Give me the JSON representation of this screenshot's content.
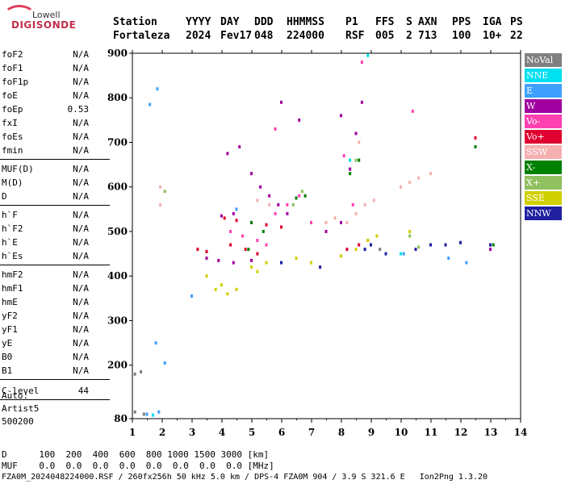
{
  "logo": {
    "brand": "Lowell",
    "name": "DIGISONDE"
  },
  "header": {
    "row1": [
      "Station",
      "YYYY",
      "DAY",
      "DDD",
      "HHMMSS",
      "P1",
      "FFS",
      "S",
      "AXN",
      "PPS",
      "IGA",
      "PS"
    ],
    "row2": [
      "Fortaleza",
      "2024",
      "Fev17",
      "048",
      "224000",
      "RSF",
      "005",
      "2",
      "713",
      "100",
      "10+",
      "22"
    ]
  },
  "params": {
    "group1": [
      {
        "name": "foF2",
        "value": "N/A"
      },
      {
        "name": "foF1",
        "value": "N/A"
      },
      {
        "name": "foF1p",
        "value": "N/A"
      },
      {
        "name": "foE",
        "value": "N/A"
      },
      {
        "name": "foEp",
        "value": "0.53"
      },
      {
        "name": "fxI",
        "value": "N/A"
      },
      {
        "name": "foEs",
        "value": "N/A"
      },
      {
        "name": "fmin",
        "value": "N/A"
      }
    ],
    "group2": [
      {
        "name": "MUF(D)",
        "value": "N/A"
      },
      {
        "name": "M(D)",
        "value": "N/A"
      },
      {
        "name": "D",
        "value": "N/A"
      }
    ],
    "group3": [
      {
        "name": "h`F",
        "value": "N/A"
      },
      {
        "name": "h`F2",
        "value": "N/A"
      },
      {
        "name": "h`E",
        "value": "N/A"
      },
      {
        "name": "h`Es",
        "value": "N/A"
      }
    ],
    "group4": [
      {
        "name": "hmF2",
        "value": "N/A"
      },
      {
        "name": "hmF1",
        "value": "N/A"
      },
      {
        "name": "hmE",
        "value": "N/A"
      },
      {
        "name": "yF2",
        "value": "N/A"
      },
      {
        "name": "yF1",
        "value": "N/A"
      },
      {
        "name": "yE",
        "value": "N/A"
      },
      {
        "name": "B0",
        "value": "N/A"
      },
      {
        "name": "B1",
        "value": "N/A"
      }
    ],
    "clevel": {
      "name": "C-level",
      "value": "44"
    }
  },
  "auto": {
    "l1": "Auto:",
    "l2": "Artist5",
    "l3": "500200"
  },
  "legend": [
    {
      "label": "NoVal",
      "color": "#808080"
    },
    {
      "label": "NNE",
      "color": "#00e0f0"
    },
    {
      "label": "E",
      "color": "#40a0ff"
    },
    {
      "label": "W",
      "color": "#a000a0"
    },
    {
      "label": "Vo-",
      "color": "#ff40b0"
    },
    {
      "label": "Vo+",
      "color": "#e00030"
    },
    {
      "label": "SSW",
      "color": "#f5b0b0"
    },
    {
      "label": "X-",
      "color": "#008000"
    },
    {
      "label": "X+",
      "color": "#90c060"
    },
    {
      "label": "SSE",
      "color": "#d0d000"
    },
    {
      "label": "NNW",
      "color": "#2020a0"
    }
  ],
  "footer": {
    "d_row": "D      100  200  400  600  800 1000 1500 3000 [km]",
    "muf_row": "MUF    0.0  0.0  0.0  0.0  0.0  0.0  0.0  0.0 [MHz]",
    "info": "FZA0M_2024048224000.RSF / 260fx256h 50 kHz 5.0 km / DPS-4 FZA0M 904 / 3.9 S 321.6 E   Ion2Png 1.3.20"
  },
  "chart_data": {
    "type": "scatter",
    "xlim": [
      1,
      14
    ],
    "ylim": [
      80,
      900
    ],
    "x_ticks": [
      "1",
      "2",
      "3",
      "4",
      "5",
      "6",
      "7",
      "8",
      "9",
      "10",
      "11",
      "12",
      "13",
      "14"
    ],
    "y_ticks": [
      "80",
      "200",
      "300",
      "400",
      "500",
      "600",
      "700",
      "800",
      "900"
    ],
    "series": [
      {
        "name": "Vo+",
        "color": "#e00030",
        "points": [
          [
            4.1,
            530
          ],
          [
            4.5,
            525
          ],
          [
            5.0,
            520
          ],
          [
            5.5,
            515
          ],
          [
            6.0,
            510
          ],
          [
            4.3,
            470
          ],
          [
            4.8,
            460
          ],
          [
            5.2,
            450
          ],
          [
            8.2,
            460
          ],
          [
            8.6,
            470
          ],
          [
            8.9,
            480
          ],
          [
            12.5,
            710
          ],
          [
            3.2,
            460
          ],
          [
            3.5,
            455
          ]
        ]
      },
      {
        "name": "W",
        "color": "#a000a0",
        "points": [
          [
            4.2,
            675
          ],
          [
            4.6,
            690
          ],
          [
            5.0,
            630
          ],
          [
            5.3,
            600
          ],
          [
            5.6,
            580
          ],
          [
            5.9,
            560
          ],
          [
            6.2,
            540
          ],
          [
            4.0,
            535
          ],
          [
            4.4,
            540
          ],
          [
            7.5,
            500
          ],
          [
            8.0,
            520
          ],
          [
            8.3,
            640
          ],
          [
            8.5,
            720
          ],
          [
            8.7,
            790
          ],
          [
            8.0,
            760
          ],
          [
            6.6,
            750
          ],
          [
            6.0,
            790
          ],
          [
            3.5,
            440
          ],
          [
            3.9,
            435
          ],
          [
            4.4,
            430
          ],
          [
            5.0,
            435
          ],
          [
            13.0,
            460
          ]
        ]
      },
      {
        "name": "Vo-",
        "color": "#ff40b0",
        "points": [
          [
            4.3,
            500
          ],
          [
            4.7,
            490
          ],
          [
            5.2,
            480
          ],
          [
            5.5,
            470
          ],
          [
            5.8,
            540
          ],
          [
            6.2,
            560
          ],
          [
            6.6,
            580
          ],
          [
            7.0,
            520
          ],
          [
            8.4,
            560
          ],
          [
            8.1,
            670
          ],
          [
            5.8,
            730
          ],
          [
            10.4,
            770
          ],
          [
            8.7,
            880
          ]
        ]
      },
      {
        "name": "SSW",
        "color": "#f5b0b0",
        "points": [
          [
            8.2,
            520
          ],
          [
            8.5,
            540
          ],
          [
            8.8,
            560
          ],
          [
            9.1,
            570
          ],
          [
            7.8,
            530
          ],
          [
            7.5,
            520
          ],
          [
            10.0,
            600
          ],
          [
            10.3,
            610
          ],
          [
            10.6,
            620
          ],
          [
            11.0,
            630
          ],
          [
            1.95,
            560
          ],
          [
            1.95,
            600
          ],
          [
            5.2,
            570
          ],
          [
            5.6,
            560
          ],
          [
            8.6,
            700
          ]
        ]
      },
      {
        "name": "X-",
        "color": "#008000",
        "points": [
          [
            5.0,
            520
          ],
          [
            5.4,
            500
          ],
          [
            6.5,
            575
          ],
          [
            6.8,
            580
          ],
          [
            8.3,
            630
          ],
          [
            8.6,
            660
          ],
          [
            12.5,
            690
          ],
          [
            13.1,
            470
          ],
          [
            4.9,
            460
          ]
        ]
      },
      {
        "name": "X+",
        "color": "#90c060",
        "points": [
          [
            6.4,
            560
          ],
          [
            6.7,
            590
          ],
          [
            8.5,
            660
          ],
          [
            10.6,
            465
          ],
          [
            10.3,
            490
          ],
          [
            2.1,
            590
          ]
        ]
      },
      {
        "name": "SSE",
        "color": "#d0d000",
        "points": [
          [
            3.5,
            400
          ],
          [
            4.0,
            380
          ],
          [
            4.5,
            370
          ],
          [
            5.0,
            420
          ],
          [
            5.5,
            430
          ],
          [
            6.5,
            440
          ],
          [
            7.0,
            430
          ],
          [
            8.0,
            445
          ],
          [
            8.5,
            460
          ],
          [
            8.9,
            480
          ],
          [
            9.2,
            490
          ],
          [
            10.3,
            500
          ],
          [
            3.8,
            370
          ],
          [
            4.2,
            360
          ],
          [
            5.2,
            410
          ]
        ]
      },
      {
        "name": "NNW",
        "color": "#2020a0",
        "points": [
          [
            9.0,
            470
          ],
          [
            9.5,
            450
          ],
          [
            10.5,
            460
          ],
          [
            11.0,
            470
          ],
          [
            11.5,
            470
          ],
          [
            12.0,
            475
          ],
          [
            13.0,
            470
          ],
          [
            6.0,
            430
          ],
          [
            7.3,
            420
          ],
          [
            8.8,
            460
          ]
        ]
      },
      {
        "name": "E",
        "color": "#40a0ff",
        "points": [
          [
            1.6,
            785
          ],
          [
            1.85,
            820
          ],
          [
            1.8,
            250
          ],
          [
            2.1,
            205
          ],
          [
            3.0,
            355
          ],
          [
            1.5,
            90
          ],
          [
            1.9,
            95
          ],
          [
            4.5,
            550
          ],
          [
            10.1,
            450
          ],
          [
            11.6,
            440
          ],
          [
            12.2,
            430
          ]
        ]
      },
      {
        "name": "NNE",
        "color": "#00e0f0",
        "points": [
          [
            8.9,
            895
          ],
          [
            10.0,
            450
          ],
          [
            1.7,
            88
          ],
          [
            8.3,
            660
          ]
        ]
      },
      {
        "name": "NoVal",
        "color": "#808080",
        "points": [
          [
            1.1,
            180
          ],
          [
            1.3,
            185
          ],
          [
            1.1,
            95
          ],
          [
            1.4,
            90
          ],
          [
            9.3,
            460
          ]
        ]
      }
    ]
  }
}
